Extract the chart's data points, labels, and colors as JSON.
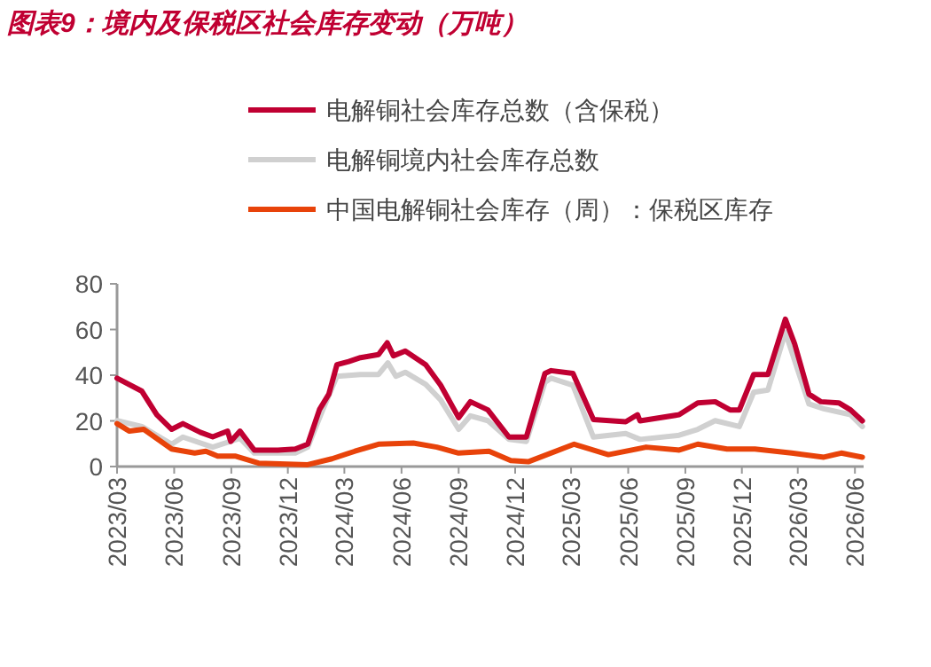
{
  "chart_data": {
    "type": "line",
    "title": "图表9：境内及保税区社会库存变动（万吨）",
    "series": [
      {
        "name": "电解铜社会库存总数（含保税）",
        "color": "#c00032",
        "x": [
          "2023-03-01",
          "2023-04-10",
          "2023-05-04",
          "2023-05-28",
          "2023-06-15",
          "2023-07-13",
          "2023-08-02",
          "2023-08-26",
          "2023-08-31",
          "2023-09-15",
          "2023-10-08",
          "2023-11-15",
          "2023-12-13",
          "2024-01-02",
          "2024-01-21",
          "2024-02-05",
          "2024-02-18",
          "2024-03-08",
          "2024-03-27",
          "2024-04-25",
          "2024-05-09",
          "2024-05-19",
          "2024-06-07",
          "2024-07-10",
          "2024-08-03",
          "2024-09-01",
          "2024-09-20",
          "2024-10-18",
          "2024-11-21",
          "2024-12-19",
          "2025-01-18",
          "2025-01-28",
          "2025-03-04",
          "2025-04-06",
          "2025-05-28",
          "2025-06-16",
          "2025-06-20",
          "2025-08-22",
          "2025-09-21",
          "2025-10-19",
          "2025-11-12",
          "2025-11-27",
          "2025-12-20",
          "2026-01-12",
          "2026-02-09",
          "2026-02-24",
          "2026-03-19",
          "2026-04-07",
          "2026-05-06",
          "2026-05-25",
          "2026-06-13"
        ],
        "values": [
          38.7,
          33,
          22.7,
          16.3,
          18.8,
          15,
          13,
          15.5,
          11,
          15.5,
          7.2,
          7.2,
          7.7,
          9.8,
          25,
          31.7,
          44.6,
          46,
          47.7,
          49,
          54.2,
          48.5,
          50.6,
          44.6,
          35.6,
          21.4,
          28.4,
          24.8,
          12.9,
          12.9,
          40.8,
          42,
          40.8,
          20.6,
          19.6,
          22.7,
          20,
          22.7,
          27.9,
          28.4,
          24.8,
          24.8,
          40.3,
          40.3,
          64.5,
          53.7,
          31.7,
          28.4,
          27.9,
          24.8,
          20
        ]
      },
      {
        "name": "电解铜境内社会库存总数",
        "color": "#d0d0d0",
        "x": [
          "2023-03-01",
          "2023-04-10",
          "2023-05-28",
          "2023-06-15",
          "2023-08-02",
          "2023-08-30",
          "2023-09-15",
          "2023-10-08",
          "2023-12-13",
          "2024-01-02",
          "2024-01-25",
          "2024-02-18",
          "2024-03-27",
          "2024-04-25",
          "2024-05-10",
          "2024-05-23",
          "2024-06-07",
          "2024-07-10",
          "2024-08-03",
          "2024-09-01",
          "2024-09-20",
          "2024-10-18",
          "2024-11-21",
          "2024-12-19",
          "2025-01-18",
          "2025-01-28",
          "2025-03-04",
          "2025-04-06",
          "2025-05-28",
          "2025-06-20",
          "2025-08-22",
          "2025-09-21",
          "2025-10-19",
          "2025-11-27",
          "2025-12-20",
          "2026-01-12",
          "2026-02-09",
          "2026-03-19",
          "2026-04-12",
          "2026-05-25",
          "2026-06-13"
        ],
        "values": [
          20.1,
          17.5,
          9.8,
          12.9,
          8.5,
          11,
          12.4,
          5.9,
          5.9,
          8.5,
          24,
          39.5,
          40.3,
          40.3,
          45.4,
          39.5,
          41.3,
          36,
          29.2,
          16.3,
          22.2,
          20.1,
          11.9,
          11,
          36.9,
          38.7,
          35.6,
          12.9,
          14.5,
          11.9,
          13.7,
          16.3,
          20.1,
          17.5,
          32.5,
          33.5,
          58.8,
          27.4,
          25.3,
          22.7,
          17.5
        ]
      },
      {
        "name": "中国电解铜社会库存（周）：保税区库存",
        "color": "#e8430a",
        "x": [
          "2023-03-01",
          "2023-03-21",
          "2023-04-13",
          "2023-05-28",
          "2023-07-04",
          "2023-07-22",
          "2023-08-10",
          "2023-09-07",
          "2023-10-15",
          "2024-01-02",
          "2024-02-10",
          "2024-03-18",
          "2024-04-25",
          "2024-06-20",
          "2024-07-28",
          "2024-09-01",
          "2024-10-20",
          "2024-11-24",
          "2024-12-22",
          "2025-03-06",
          "2025-04-30",
          "2025-06-30",
          "2025-08-22",
          "2025-09-21",
          "2025-11-07",
          "2025-12-22",
          "2026-02-19",
          "2026-04-12",
          "2026-05-10",
          "2026-06-13"
        ],
        "values": [
          18.8,
          15.5,
          16.3,
          7.7,
          5.9,
          6.7,
          4.6,
          4.6,
          1.5,
          0.8,
          3.4,
          6.7,
          9.8,
          10.3,
          8.5,
          5.9,
          6.7,
          2.6,
          2.1,
          9.8,
          5.2,
          8.5,
          7.2,
          9.8,
          7.7,
          7.7,
          5.9,
          4.1,
          5.9,
          4.1
        ]
      }
    ],
    "xlim": [
      "2023-03-01",
      "2026-06-15"
    ],
    "xticks": [
      {
        "value": "2023-03",
        "label": "2023/03"
      },
      {
        "value": "2023-06",
        "label": "2023/06"
      },
      {
        "value": "2023-09",
        "label": "2023/09"
      },
      {
        "value": "2023-12",
        "label": "2023/12"
      },
      {
        "value": "2024-03",
        "label": "2024/03"
      },
      {
        "value": "2024-06",
        "label": "2024/06"
      },
      {
        "value": "2024-09",
        "label": "2024/09"
      },
      {
        "value": "2024-12",
        "label": "2024/12"
      },
      {
        "value": "2025-03",
        "label": "2025/03"
      },
      {
        "value": "2025-06",
        "label": "2025/06"
      },
      {
        "value": "2025-09",
        "label": "2025/09"
      },
      {
        "value": "2025-12",
        "label": "2025/12"
      },
      {
        "value": "2026-03",
        "label": "2026/03"
      },
      {
        "value": "2026-06",
        "label": "2026/06"
      }
    ],
    "ylim": [
      0,
      80
    ],
    "yticks": [
      0,
      20,
      40,
      60,
      80
    ],
    "grid": false,
    "legend": "top",
    "marker": "none",
    "line_style": "solid"
  }
}
